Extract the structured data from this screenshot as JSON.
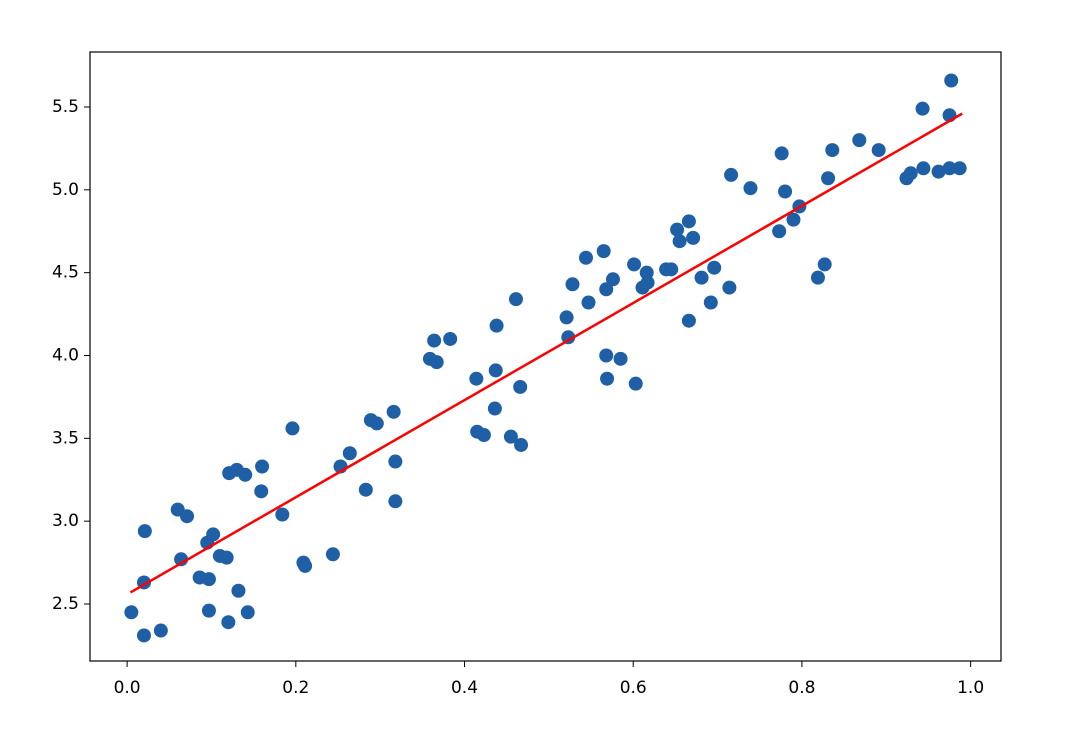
{
  "chart_data": {
    "type": "scatter",
    "xlim": [
      -0.044,
      1.036
    ],
    "ylim": [
      2.156,
      5.832
    ],
    "xticks": [
      {
        "value": 0,
        "label": "0.0"
      },
      0.2,
      0.4,
      0.6,
      0.8,
      {
        "value": 1,
        "label": "1.0"
      }
    ],
    "yticks": [
      2.5,
      {
        "value": 3,
        "label": "3.0"
      },
      3.5,
      {
        "value": 4,
        "label": "4.0"
      },
      4.5,
      {
        "value": 5,
        "label": "5.0"
      },
      5.5
    ],
    "series": [
      {
        "color": "#1f5fa5",
        "type": "scatter",
        "x": [
          0.005,
          0.02,
          0.02,
          0.021,
          0.04,
          0.06,
          0.064,
          0.071,
          0.086,
          0.095,
          0.097,
          0.097,
          0.102,
          0.11,
          0.118,
          0.12,
          0.121,
          0.13,
          0.132,
          0.14,
          0.143,
          0.16,
          0.159,
          0.184,
          0.196,
          0.209,
          0.211,
          0.244,
          0.253,
          0.264,
          0.283,
          0.289,
          0.296,
          0.316,
          0.318,
          0.318,
          0.359,
          0.364,
          0.367,
          0.383,
          0.414,
          0.415,
          0.423,
          0.437,
          0.436,
          0.438,
          0.455,
          0.461,
          0.466,
          0.467,
          0.521,
          0.523,
          0.528,
          0.544,
          0.547,
          0.565,
          0.568,
          0.568,
          0.569,
          0.576,
          0.585,
          0.601,
          0.603,
          0.611,
          0.616,
          0.617,
          0.639,
          0.645,
          0.652,
          0.655,
          0.666,
          0.666,
          0.671,
          0.681,
          0.692,
          0.696,
          0.714,
          0.716,
          0.739,
          0.773,
          0.776,
          0.78,
          0.79,
          0.797,
          0.819,
          0.827,
          0.831,
          0.836,
          0.868,
          0.891,
          0.924,
          0.929,
          0.943,
          0.944,
          0.962,
          0.975,
          0.975,
          0.977,
          0.987
        ],
        "values": [
          2.45,
          2.31,
          2.63,
          2.94,
          2.34,
          3.07,
          2.77,
          3.03,
          2.66,
          2.87,
          2.65,
          2.46,
          2.92,
          2.79,
          2.78,
          2.39,
          3.29,
          3.31,
          2.58,
          3.28,
          2.45,
          3.33,
          3.18,
          3.04,
          3.56,
          2.75,
          2.73,
          2.8,
          3.33,
          3.41,
          3.19,
          3.61,
          3.59,
          3.66,
          3.36,
          3.12,
          3.98,
          4.09,
          3.96,
          4.1,
          3.86,
          3.54,
          3.52,
          3.91,
          3.68,
          4.18,
          3.51,
          4.34,
          3.81,
          3.46,
          4.23,
          4.11,
          4.43,
          4.59,
          4.32,
          4.63,
          4.0,
          4.4,
          3.86,
          4.46,
          3.98,
          4.55,
          3.83,
          4.41,
          4.5,
          4.44,
          4.52,
          4.52,
          4.76,
          4.69,
          4.81,
          4.21,
          4.71,
          4.47,
          4.32,
          4.53,
          4.41,
          5.09,
          5.01,
          4.75,
          5.22,
          4.99,
          4.82,
          4.9,
          4.47,
          4.55,
          5.07,
          5.24,
          5.3,
          5.24,
          5.07,
          5.1,
          5.49,
          5.13,
          5.11,
          5.13,
          5.45,
          5.66,
          5.13
        ]
      },
      {
        "color": "#ff0000",
        "type": "line",
        "x": [
          0.004,
          0.99
        ],
        "values": [
          2.57,
          5.46
        ]
      }
    ]
  }
}
